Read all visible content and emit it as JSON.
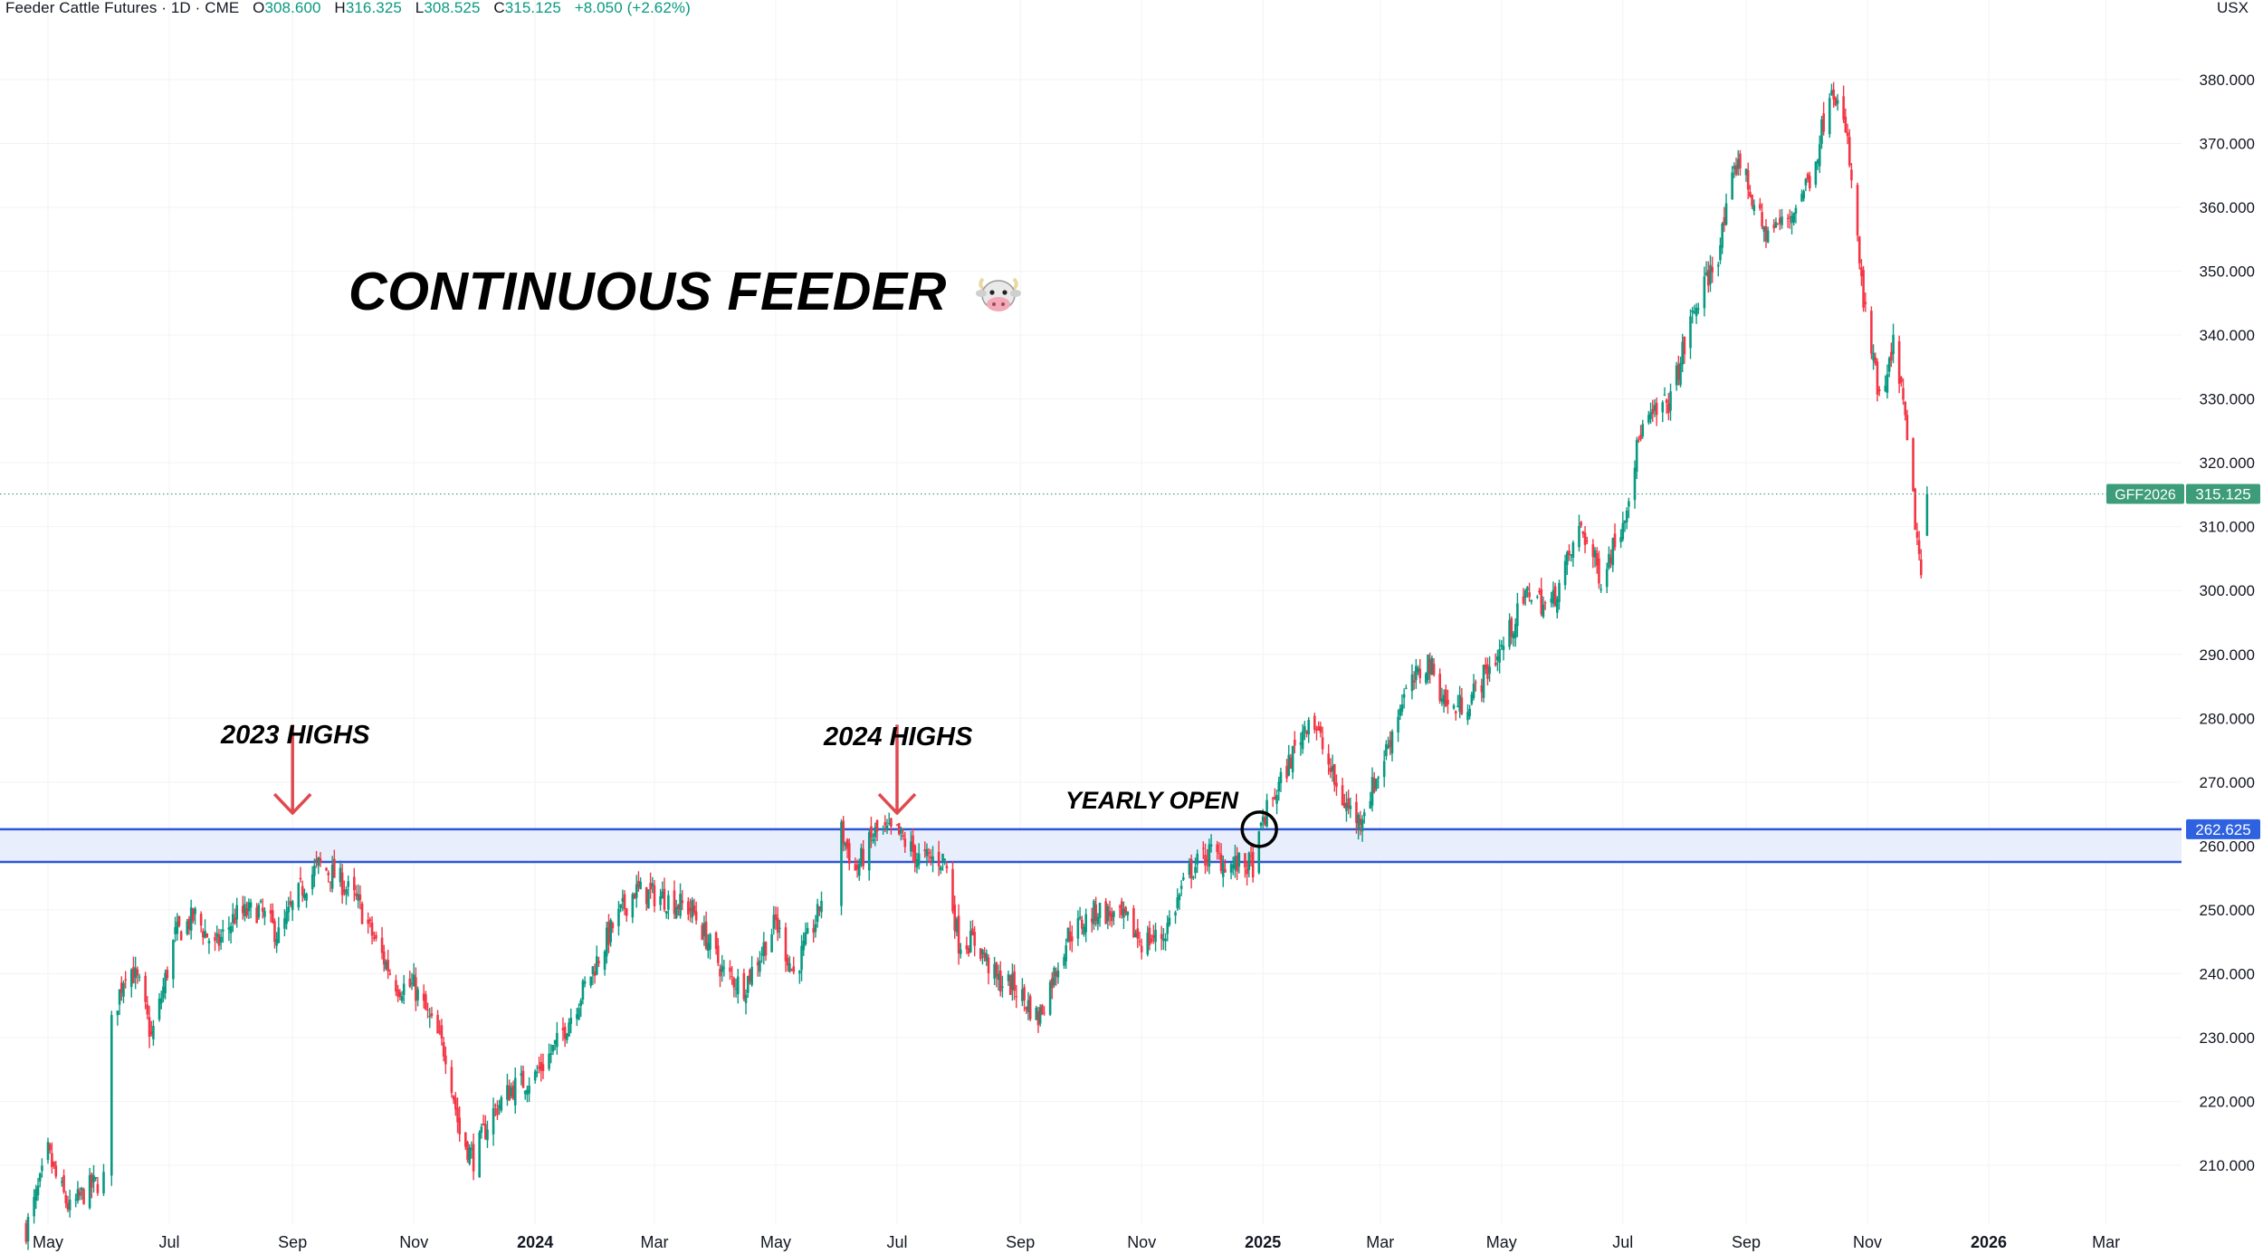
{
  "header": {
    "symbol_text": "Feeder Cattle Futures · 1D · CME",
    "open_label": "O",
    "open_value": "308.600",
    "high_label": "H",
    "high_value": "316.325",
    "low_label": "L",
    "low_value": "308.525",
    "close_label": "C",
    "close_value": "315.125",
    "change_text": "+8.050 (+2.62%)",
    "currency": "USX"
  },
  "annotations": {
    "title": "CONTINUOUS FEEDER",
    "title_icon": "cow-face-icon",
    "highs_2023": "2023 HIGHS",
    "highs_2024": "2024 HIGHS",
    "yearly_open": "YEARLY OPEN"
  },
  "colors": {
    "up": "#089981",
    "down": "#f23645",
    "zone_fill": "#e8eefc",
    "zone_line": "#2e55d6",
    "arrow": "#e0494f",
    "last_price_label": "#3d9c79",
    "zone_label": "#2f62e0"
  },
  "chart_data": {
    "type": "candlestick",
    "x_tick_labels": [
      "May",
      "Jul",
      "Sep",
      "Nov",
      "2024",
      "Mar",
      "May",
      "Jul",
      "Sep",
      "Nov",
      "2025",
      "Mar",
      "May",
      "Jul",
      "Sep",
      "Nov",
      "2026",
      "Mar"
    ],
    "x_tick_dates": [
      "2023-05-01",
      "2023-07-01",
      "2023-09-01",
      "2023-11-01",
      "2024-01-01",
      "2024-03-01",
      "2024-05-01",
      "2024-07-01",
      "2024-09-01",
      "2024-11-01",
      "2025-01-01",
      "2025-03-01",
      "2025-05-01",
      "2025-07-01",
      "2025-09-01",
      "2025-11-01",
      "2026-01-01",
      "2026-03-01"
    ],
    "y_tick_labels": [
      "210.000",
      "220.000",
      "230.000",
      "240.000",
      "250.000",
      "260.000",
      "270.000",
      "280.000",
      "290.000",
      "300.000",
      "310.000",
      "320.000",
      "330.000",
      "340.000",
      "350.000",
      "360.000",
      "370.000",
      "380.000"
    ],
    "ylim": [
      200,
      390
    ],
    "grid": true,
    "price_path": [
      [
        "2023-04-20",
        200
      ],
      [
        "2023-04-27",
        207
      ],
      [
        "2023-05-01",
        212
      ],
      [
        "2023-05-05",
        208
      ],
      [
        "2023-05-12",
        203
      ],
      [
        "2023-05-20",
        206
      ],
      [
        "2023-05-29",
        208
      ],
      [
        "2023-06-02",
        232
      ],
      [
        "2023-06-10",
        242
      ],
      [
        "2023-06-16",
        238
      ],
      [
        "2023-06-22",
        230
      ],
      [
        "2023-06-26",
        235
      ],
      [
        "2023-07-04",
        246
      ],
      [
        "2023-07-14",
        249
      ],
      [
        "2023-07-24",
        244
      ],
      [
        "2023-08-03",
        249
      ],
      [
        "2023-08-15",
        250
      ],
      [
        "2023-08-25",
        246
      ],
      [
        "2023-09-05",
        253
      ],
      [
        "2023-09-14",
        257
      ],
      [
        "2023-09-24",
        255
      ],
      [
        "2023-10-04",
        251
      ],
      [
        "2023-10-14",
        244
      ],
      [
        "2023-10-24",
        238
      ],
      [
        "2023-11-01",
        238
      ],
      [
        "2023-11-10",
        232
      ],
      [
        "2023-11-18",
        227
      ],
      [
        "2023-11-24",
        215
      ],
      [
        "2023-12-01",
        211
      ],
      [
        "2023-12-10",
        218
      ],
      [
        "2023-12-20",
        222
      ],
      [
        "2024-01-01",
        224
      ],
      [
        "2024-01-12",
        229
      ],
      [
        "2024-01-26",
        238
      ],
      [
        "2024-02-10",
        248
      ],
      [
        "2024-02-20",
        253
      ],
      [
        "2024-03-05",
        252
      ],
      [
        "2024-03-20",
        250
      ],
      [
        "2024-04-05",
        240
      ],
      [
        "2024-04-15",
        238
      ],
      [
        "2024-05-01",
        248
      ],
      [
        "2024-05-10",
        240
      ],
      [
        "2024-05-22",
        249
      ],
      [
        "2024-06-01",
        264
      ],
      [
        "2024-06-10",
        256
      ],
      [
        "2024-06-20",
        262
      ],
      [
        "2024-07-01",
        262
      ],
      [
        "2024-07-12",
        258
      ],
      [
        "2024-07-25",
        258
      ],
      [
        "2024-08-01",
        245
      ],
      [
        "2024-08-10",
        245
      ],
      [
        "2024-08-20",
        239
      ],
      [
        "2024-08-29",
        238
      ],
      [
        "2024-09-10",
        233
      ],
      [
        "2024-09-25",
        246
      ],
      [
        "2024-10-10",
        250
      ],
      [
        "2024-10-25",
        248
      ],
      [
        "2024-11-01",
        245
      ],
      [
        "2024-11-12",
        246
      ],
      [
        "2024-11-25",
        256
      ],
      [
        "2024-12-05",
        259
      ],
      [
        "2024-12-15",
        257
      ],
      [
        "2024-12-28",
        257
      ],
      [
        "2025-01-01",
        264
      ],
      [
        "2025-01-10",
        270
      ],
      [
        "2025-01-25",
        281
      ],
      [
        "2025-02-08",
        268
      ],
      [
        "2025-02-18",
        264
      ],
      [
        "2025-03-01",
        272
      ],
      [
        "2025-03-12",
        283
      ],
      [
        "2025-03-25",
        289
      ],
      [
        "2025-04-05",
        281
      ],
      [
        "2025-04-15",
        283
      ],
      [
        "2025-05-01",
        291
      ],
      [
        "2025-05-15",
        300
      ],
      [
        "2025-05-25",
        297
      ],
      [
        "2025-06-10",
        310
      ],
      [
        "2025-06-20",
        302
      ],
      [
        "2025-07-01",
        311
      ],
      [
        "2025-07-10",
        325
      ],
      [
        "2025-07-25",
        330
      ],
      [
        "2025-08-05",
        343
      ],
      [
        "2025-08-18",
        353
      ],
      [
        "2025-08-28",
        368
      ],
      [
        "2025-09-10",
        356
      ],
      [
        "2025-09-22",
        358
      ],
      [
        "2025-10-05",
        366
      ],
      [
        "2025-10-14",
        380
      ],
      [
        "2025-10-22",
        370
      ],
      [
        "2025-10-30",
        345
      ],
      [
        "2025-11-08",
        328
      ],
      [
        "2025-11-15",
        340
      ],
      [
        "2025-11-22",
        320
      ],
      [
        "2025-11-28",
        302
      ],
      [
        "2025-12-01",
        315
      ]
    ],
    "last_price_label": "GFF2026",
    "last_price": 315.125,
    "zone": {
      "low": 257.5,
      "high": 262.625,
      "label": "262.625"
    },
    "markers": [
      {
        "label": "2023 HIGHS",
        "date": "2023-09-01"
      },
      {
        "label": "2024 HIGHS",
        "date": "2024-07-01"
      },
      {
        "label": "YEARLY OPEN",
        "date": "2025-01-01",
        "price": 262.625
      }
    ]
  }
}
